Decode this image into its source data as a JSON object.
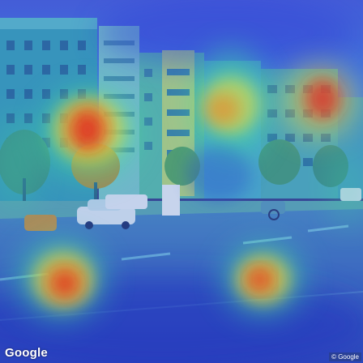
{
  "image": {
    "kind": "street-view-photo-with-attention-heatmap",
    "heatmap_palette": [
      "#2030c0",
      "#20a0e0",
      "#40e0a0",
      "#f0e040",
      "#f08020",
      "#e02020"
    ]
  },
  "watermark": {
    "brand": "Google",
    "copyright": "© Google"
  }
}
